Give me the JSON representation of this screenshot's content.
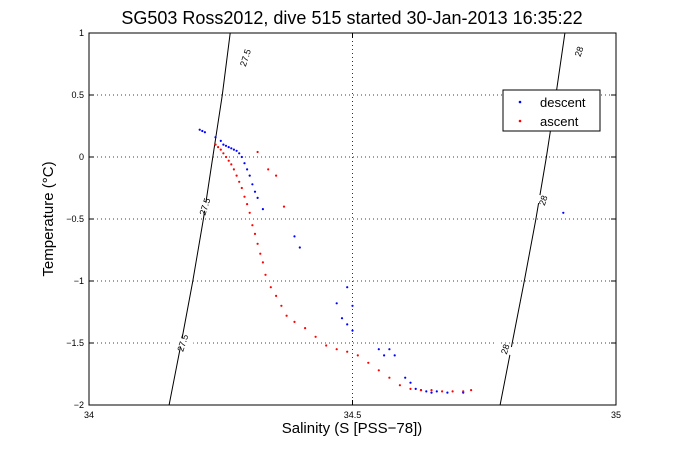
{
  "chart_data": {
    "type": "scatter",
    "title": "SG503 Ross2012, dive 515 started 30-Jan-2013 16:35:22",
    "xlabel": "Salinity (S [PSS−78])",
    "ylabel": "Temperature (°C)",
    "xlim": [
      34,
      35
    ],
    "ylim": [
      -2,
      1
    ],
    "x_ticks": [
      34,
      34.5,
      35
    ],
    "x_tick_labels": [
      "34",
      "34.5",
      "35"
    ],
    "y_ticks": [
      -2,
      -1.5,
      -1,
      -0.5,
      0,
      0.5,
      1
    ],
    "y_tick_labels": [
      "−2",
      "−1.5",
      "−1",
      "−0.5",
      "0",
      "0.5",
      "1"
    ],
    "grid": true,
    "legend_position": "top-right",
    "isopycnals": [
      {
        "label": "27.5",
        "points": [
          [
            34.152,
            -2.0
          ],
          [
            34.175,
            -1.5
          ],
          [
            34.197,
            -1.0
          ],
          [
            34.217,
            -0.5
          ],
          [
            34.235,
            0.0
          ],
          [
            34.253,
            0.5
          ],
          [
            34.268,
            1.0
          ]
        ],
        "label_positions": [
          [
            34.178,
            -1.5
          ],
          [
            34.22,
            -0.4
          ],
          [
            34.297,
            0.8
          ]
        ]
      },
      {
        "label": "28",
        "points": [
          [
            34.78,
            -2.0
          ],
          [
            34.803,
            -1.5
          ],
          [
            34.826,
            -1.0
          ],
          [
            34.848,
            -0.5
          ],
          [
            34.868,
            0.0
          ],
          [
            34.886,
            0.5
          ],
          [
            34.903,
            1.0
          ]
        ],
        "label_positions": [
          [
            34.79,
            -1.55
          ],
          [
            34.862,
            -0.35
          ],
          [
            34.93,
            0.85
          ]
        ]
      }
    ],
    "series": [
      {
        "name": "descent",
        "color": "#0000ff",
        "points": [
          [
            34.21,
            0.22
          ],
          [
            34.215,
            0.21
          ],
          [
            34.22,
            0.2
          ],
          [
            34.24,
            0.16
          ],
          [
            34.25,
            0.13
          ],
          [
            34.255,
            0.1
          ],
          [
            34.26,
            0.09
          ],
          [
            34.265,
            0.08
          ],
          [
            34.27,
            0.07
          ],
          [
            34.275,
            0.06
          ],
          [
            34.28,
            0.05
          ],
          [
            34.285,
            0.03
          ],
          [
            34.29,
            0.0
          ],
          [
            34.295,
            -0.05
          ],
          [
            34.3,
            -0.1
          ],
          [
            34.305,
            -0.15
          ],
          [
            34.31,
            -0.22
          ],
          [
            34.315,
            -0.28
          ],
          [
            34.32,
            -0.33
          ],
          [
            34.33,
            -0.42
          ],
          [
            34.39,
            -0.64
          ],
          [
            34.4,
            -0.73
          ],
          [
            34.47,
            -1.18
          ],
          [
            34.48,
            -1.3
          ],
          [
            34.49,
            -1.05
          ],
          [
            34.5,
            -1.2
          ],
          [
            34.49,
            -1.35
          ],
          [
            34.5,
            -1.4
          ],
          [
            34.55,
            -1.55
          ],
          [
            34.56,
            -1.6
          ],
          [
            34.57,
            -1.55
          ],
          [
            34.58,
            -1.6
          ],
          [
            34.6,
            -1.78
          ],
          [
            34.61,
            -1.82
          ],
          [
            34.62,
            -1.87
          ],
          [
            34.63,
            -1.88
          ],
          [
            34.64,
            -1.89
          ],
          [
            34.65,
            -1.9
          ],
          [
            34.66,
            -1.89
          ],
          [
            34.68,
            -1.9
          ],
          [
            34.71,
            -1.9
          ],
          [
            34.9,
            -0.45
          ]
        ]
      },
      {
        "name": "ascent",
        "color": "#ff0000",
        "points": [
          [
            34.24,
            0.1
          ],
          [
            34.245,
            0.08
          ],
          [
            34.25,
            0.06
          ],
          [
            34.255,
            0.03
          ],
          [
            34.26,
            0.0
          ],
          [
            34.265,
            -0.03
          ],
          [
            34.27,
            -0.06
          ],
          [
            34.275,
            -0.1
          ],
          [
            34.28,
            -0.15
          ],
          [
            34.285,
            -0.2
          ],
          [
            34.29,
            -0.25
          ],
          [
            34.295,
            -0.32
          ],
          [
            34.3,
            -0.38
          ],
          [
            34.305,
            -0.45
          ],
          [
            34.31,
            -0.55
          ],
          [
            34.315,
            -0.62
          ],
          [
            34.32,
            -0.7
          ],
          [
            34.325,
            -0.78
          ],
          [
            34.33,
            -0.85
          ],
          [
            34.335,
            -0.95
          ],
          [
            34.345,
            -1.05
          ],
          [
            34.355,
            -1.12
          ],
          [
            34.365,
            -1.2
          ],
          [
            34.375,
            -1.28
          ],
          [
            34.39,
            -1.33
          ],
          [
            34.41,
            -1.38
          ],
          [
            34.43,
            -1.45
          ],
          [
            34.45,
            -1.52
          ],
          [
            34.47,
            -1.55
          ],
          [
            34.49,
            -1.57
          ],
          [
            34.51,
            -1.6
          ],
          [
            34.53,
            -1.66
          ],
          [
            34.55,
            -1.72
          ],
          [
            34.57,
            -1.78
          ],
          [
            34.59,
            -1.84
          ],
          [
            34.61,
            -1.87
          ],
          [
            34.63,
            -1.88
          ],
          [
            34.65,
            -1.88
          ],
          [
            34.67,
            -1.89
          ],
          [
            34.69,
            -1.89
          ],
          [
            34.71,
            -1.89
          ],
          [
            34.725,
            -1.88
          ],
          [
            34.32,
            0.04
          ],
          [
            34.34,
            -0.1
          ],
          [
            34.355,
            -0.15
          ],
          [
            34.37,
            -0.4
          ]
        ]
      }
    ]
  }
}
